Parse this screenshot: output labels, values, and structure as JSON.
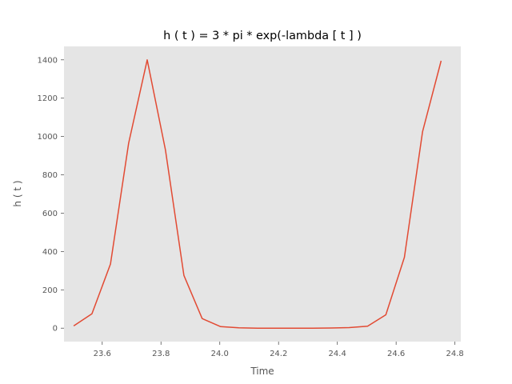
{
  "chart_data": {
    "type": "line",
    "title": "h ( t ) = 3 * pi * exp(-lambda [ t ] )",
    "xlabel": "Time",
    "ylabel": "h ( t )",
    "xlim": [
      23.47,
      24.82
    ],
    "ylim": [
      -70,
      1470
    ],
    "xticks": [
      23.6,
      23.8,
      24.0,
      24.2,
      24.4,
      24.6,
      24.8
    ],
    "xtick_labels": [
      "23.6",
      "23.8",
      "24.0",
      "24.2",
      "24.4",
      "24.6",
      "24.8"
    ],
    "yticks": [
      0,
      200,
      400,
      600,
      800,
      1000,
      1200,
      1400
    ],
    "ytick_labels": [
      "0",
      "200",
      "400",
      "600",
      "800",
      "1000",
      "1200",
      "1400"
    ],
    "grid": false,
    "background_color": "#e5e5e5",
    "line_color": "#e24a33",
    "series": [
      {
        "x": [
          23.503,
          23.565,
          23.628,
          23.69,
          23.753,
          23.815,
          23.878,
          23.94,
          24.003,
          24.065,
          24.128,
          24.19,
          24.253,
          24.315,
          24.378,
          24.44,
          24.503,
          24.565,
          24.628,
          24.69,
          24.753
        ],
        "values": [
          12,
          75,
          335,
          965,
          1400,
          930,
          275,
          50,
          8,
          2,
          0,
          0,
          0,
          0,
          1,
          3,
          10,
          70,
          370,
          1025,
          1395
        ]
      }
    ]
  }
}
